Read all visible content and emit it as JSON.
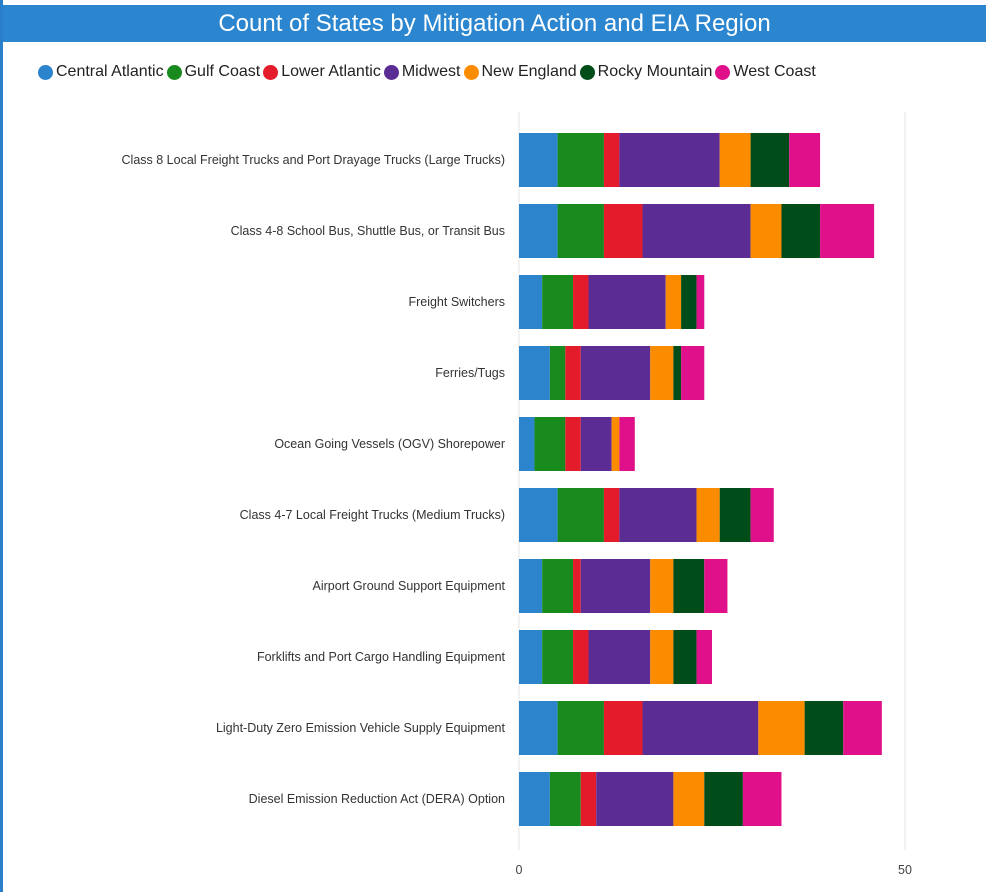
{
  "chart_data": {
    "type": "bar",
    "orientation": "horizontal",
    "stacked": true,
    "title": "Count of States by Mitigation Action and EIA Region",
    "legend_position": "top",
    "xlim": [
      0,
      60
    ],
    "xticks": [
      0,
      50
    ],
    "grid": true,
    "categories": [
      "Class 8 Local Freight Trucks and Port Drayage Trucks (Large Trucks)",
      "Class 4-8 School Bus, Shuttle Bus, or Transit Bus",
      "Freight Switchers",
      "Ferries/Tugs",
      "Ocean Going Vessels (OGV) Shorepower",
      "Class 4-7 Local Freight Trucks (Medium Trucks)",
      "Airport Ground Support Equipment",
      "Forklifts and Port Cargo Handling Equipment",
      "Light-Duty Zero Emission Vehicle Supply Equipment",
      "Diesel Emission Reduction Act (DERA) Option"
    ],
    "series": [
      {
        "name": "Central Atlantic",
        "color": "#2b84cc",
        "values": [
          5,
          5,
          3,
          4,
          2,
          5,
          3,
          3,
          5,
          4
        ]
      },
      {
        "name": "Gulf Coast",
        "color": "#198a1d",
        "values": [
          6,
          6,
          4,
          2,
          4,
          6,
          4,
          4,
          6,
          4
        ]
      },
      {
        "name": "Lower Atlantic",
        "color": "#e41b2a",
        "values": [
          2,
          5,
          2,
          2,
          2,
          2,
          1,
          2,
          5,
          2
        ]
      },
      {
        "name": "Midwest",
        "color": "#5b2d94",
        "values": [
          13,
          14,
          10,
          9,
          4,
          10,
          9,
          8,
          15,
          10
        ]
      },
      {
        "name": "New England",
        "color": "#fb8c00",
        "values": [
          4,
          4,
          2,
          3,
          1,
          3,
          3,
          3,
          6,
          4
        ]
      },
      {
        "name": "Rocky Mountain",
        "color": "#004d1a",
        "values": [
          5,
          5,
          2,
          1,
          0,
          4,
          4,
          3,
          5,
          5
        ]
      },
      {
        "name": "West Coast",
        "color": "#e0108a",
        "values": [
          4,
          7,
          1,
          3,
          2,
          3,
          3,
          2,
          5,
          5
        ]
      }
    ]
  },
  "colors": {
    "title_bar": "#2b86cf",
    "frame_border": "#2a7fca",
    "gridline": "#e6e6e6"
  }
}
